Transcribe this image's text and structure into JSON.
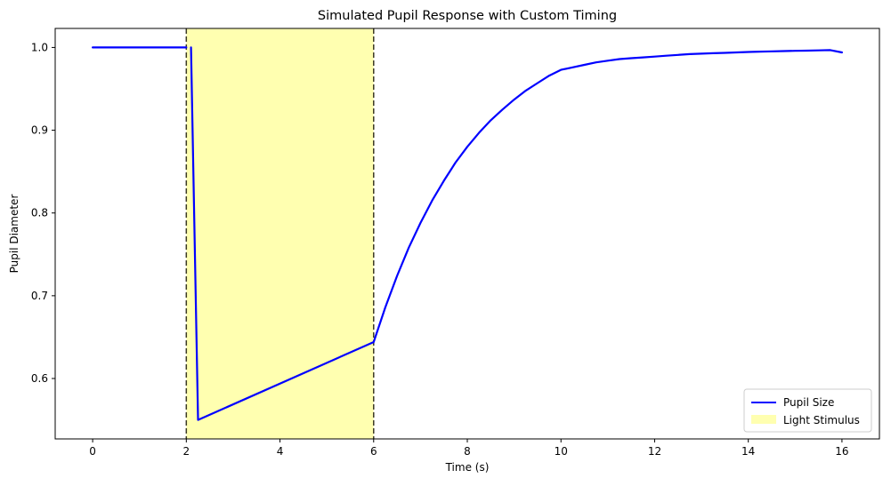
{
  "chart_data": {
    "type": "line",
    "title": "Simulated Pupil Response with Custom Timing",
    "xlabel": "Time (s)",
    "ylabel": "Pupil Diameter",
    "xlim": [
      -0.8,
      16.8
    ],
    "ylim": [
      0.527,
      1.023
    ],
    "xticks": [
      0,
      2,
      4,
      6,
      8,
      10,
      12,
      14,
      16
    ],
    "yticks": [
      0.6,
      0.7,
      0.8,
      0.9,
      1.0
    ],
    "ytick_labels": [
      "0.6",
      "0.7",
      "0.8",
      "0.9",
      "1.0"
    ],
    "grid": false,
    "legend_position": "lower-right",
    "series": [
      {
        "name": "Pupil Size",
        "color": "#0000ff",
        "segments": [
          {
            "x": [
              0,
              2.0
            ],
            "y": [
              1.0,
              1.0
            ]
          },
          {
            "x": [
              2.1,
              2.25,
              6.0,
              6.25,
              6.5,
              6.75,
              7.0,
              7.25,
              7.5,
              7.75,
              8.0,
              8.25,
              8.5,
              8.75,
              9.0,
              9.25,
              9.5,
              9.75,
              10.0,
              10.25,
              10.5,
              10.75,
              11.0,
              11.25,
              11.5,
              11.75,
              12.0,
              12.25,
              12.5,
              12.75,
              13.0,
              13.25,
              13.5,
              13.75,
              14.0,
              14.25,
              14.5,
              14.75,
              15.0,
              15.25,
              15.5,
              15.75,
              16.0
            ],
            "y": [
              1.0,
              0.55,
              0.644,
              0.686,
              0.724,
              0.758,
              0.788,
              0.815,
              0.839,
              0.861,
              0.88,
              0.897,
              0.912,
              0.925,
              0.937,
              0.948,
              0.957,
              0.966,
              0.973,
              0.976,
              0.979,
              0.982,
              0.984,
              0.986,
              0.987,
              0.988,
              0.989,
              0.99,
              0.991,
              0.992,
              0.9925,
              0.993,
              0.9935,
              0.994,
              0.9945,
              0.995,
              0.9953,
              0.9956,
              0.9959,
              0.9962,
              0.9965,
              0.9968,
              0.994
            ]
          }
        ]
      }
    ],
    "stimulus": {
      "name": "Light Stimulus",
      "start": 2.0,
      "end": 6.0,
      "fill_color": "#ffffb0",
      "edge_color": "#3d3b24"
    }
  }
}
